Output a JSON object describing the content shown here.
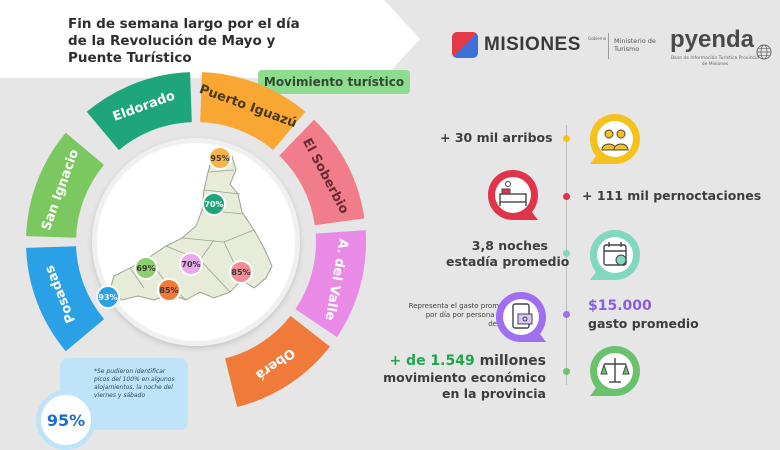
{
  "header": {
    "title_line1": "Fin de semana largo por el día",
    "title_line2": "de la Revolución de Mayo y",
    "title_line3": "Puente Turístico",
    "subtitle": "Movimiento turístico"
  },
  "logos": {
    "misiones": "MISIONES",
    "misiones_small": "Gobierno",
    "ministerio": "Ministerio de Turismo",
    "pyenda": "pyenda",
    "pyenda_sub": "Base de Información Turística Provincia de Misiones"
  },
  "regions": [
    {
      "name": "Eldorado",
      "color": "#1ea57a"
    },
    {
      "name": "Puerto Iguazú",
      "color": "#f8a733"
    },
    {
      "name": "El Soberbio",
      "color": "#f27d8a"
    },
    {
      "name": "A. del Valle",
      "color": "#e98ae6"
    },
    {
      "name": "Oberá",
      "color": "#f07a3a"
    },
    {
      "name": "Posadas",
      "color": "#2aa0e6"
    },
    {
      "name": "San Ignacio",
      "color": "#7cc860"
    }
  ],
  "map_percentages": [
    {
      "value": "95%",
      "color": "#f6b44a"
    },
    {
      "value": "70%",
      "color": "#1ea57a"
    },
    {
      "value": "69%",
      "color": "#8ccf6e"
    },
    {
      "value": "70%",
      "color": "#e9a8ea"
    },
    {
      "value": "85%",
      "color": "#f58b95"
    },
    {
      "value": "85%",
      "color": "#f07a3a"
    },
    {
      "value": "93%",
      "color": "#2aa0e6"
    }
  ],
  "note": {
    "text": "*Se pudieron identificar picos del 100% en algunos alojamientos, la noche del viernes y sábado",
    "big_value": "95%"
  },
  "stats": {
    "arribos": "+ 30 mil arribos",
    "pernoctaciones": "+ 111 mil pernoctaciones",
    "noches_line1": "3,8 noches",
    "noches_line2": "estadía promedio",
    "gasto_note": "Representa el gasto promedio por día por persona en el destino",
    "gasto_value": "$15.000",
    "gasto_label": "gasto promedio",
    "economico_prefix": "+ de 1.549",
    "economico_suffix": " millones",
    "economico_line2": "movimiento económico",
    "economico_line3": "en la provincia"
  },
  "colors": {
    "yellow": "#f5c21b",
    "red": "#e0344a",
    "teal": "#7fd8bf",
    "purple": "#a06ef0",
    "green": "#6ac26c"
  },
  "icons": [
    "people-icon",
    "bed-icon",
    "calendar-icon",
    "money-icon",
    "scale-icon"
  ]
}
